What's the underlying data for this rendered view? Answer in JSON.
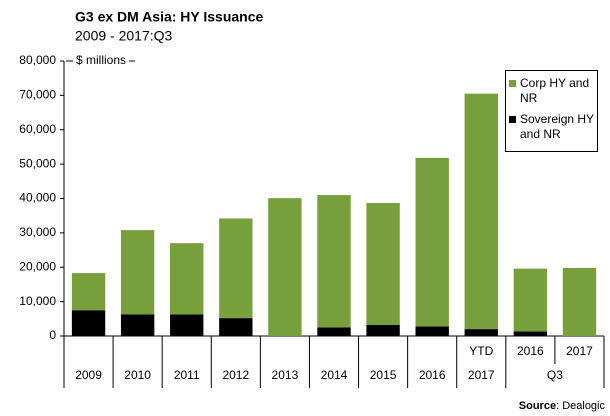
{
  "chart_data": {
    "type": "stacked_bar",
    "title": "G3 ex DM Asia:  HY Issuance",
    "subtitle": "2009 - 2017:Q3",
    "y_label": "$ millions",
    "source_label": "Source",
    "source": ": Dealogic",
    "categories": [
      "2009",
      "2010",
      "2011",
      "2012",
      "2013",
      "2014",
      "2015",
      "2016",
      "2017",
      "2016",
      "2017"
    ],
    "x_groups": [
      {
        "label": "YTD",
        "from": 8,
        "to": 8
      },
      {
        "label": "Q3",
        "from": 9,
        "to": 10
      }
    ],
    "series": [
      {
        "name": "Corp HY and NR",
        "color": "#77a03c",
        "values": [
          10800,
          24500,
          20700,
          29000,
          40100,
          38500,
          35500,
          49000,
          68500,
          18300,
          19800
        ]
      },
      {
        "name": "Sovereign HY and NR",
        "color": "#000000",
        "values": [
          7500,
          6300,
          6300,
          5200,
          0,
          2500,
          3200,
          2800,
          2000,
          1300,
          0
        ]
      }
    ],
    "ylim": [
      0,
      80000
    ],
    "yticks": [
      0,
      {
        "value": 10000,
        "label": "10,000"
      },
      {
        "value": 20000,
        "label": "20,000"
      },
      {
        "value": 30000,
        "label": "30,000"
      },
      {
        "value": 40000,
        "label": "40,000"
      },
      {
        "value": 50000,
        "label": "50,000"
      },
      {
        "value": 60000,
        "label": "60,000"
      },
      {
        "value": 70000,
        "label": "70,000"
      },
      {
        "value": 80000,
        "label": "80,000"
      }
    ],
    "grid": false
  }
}
